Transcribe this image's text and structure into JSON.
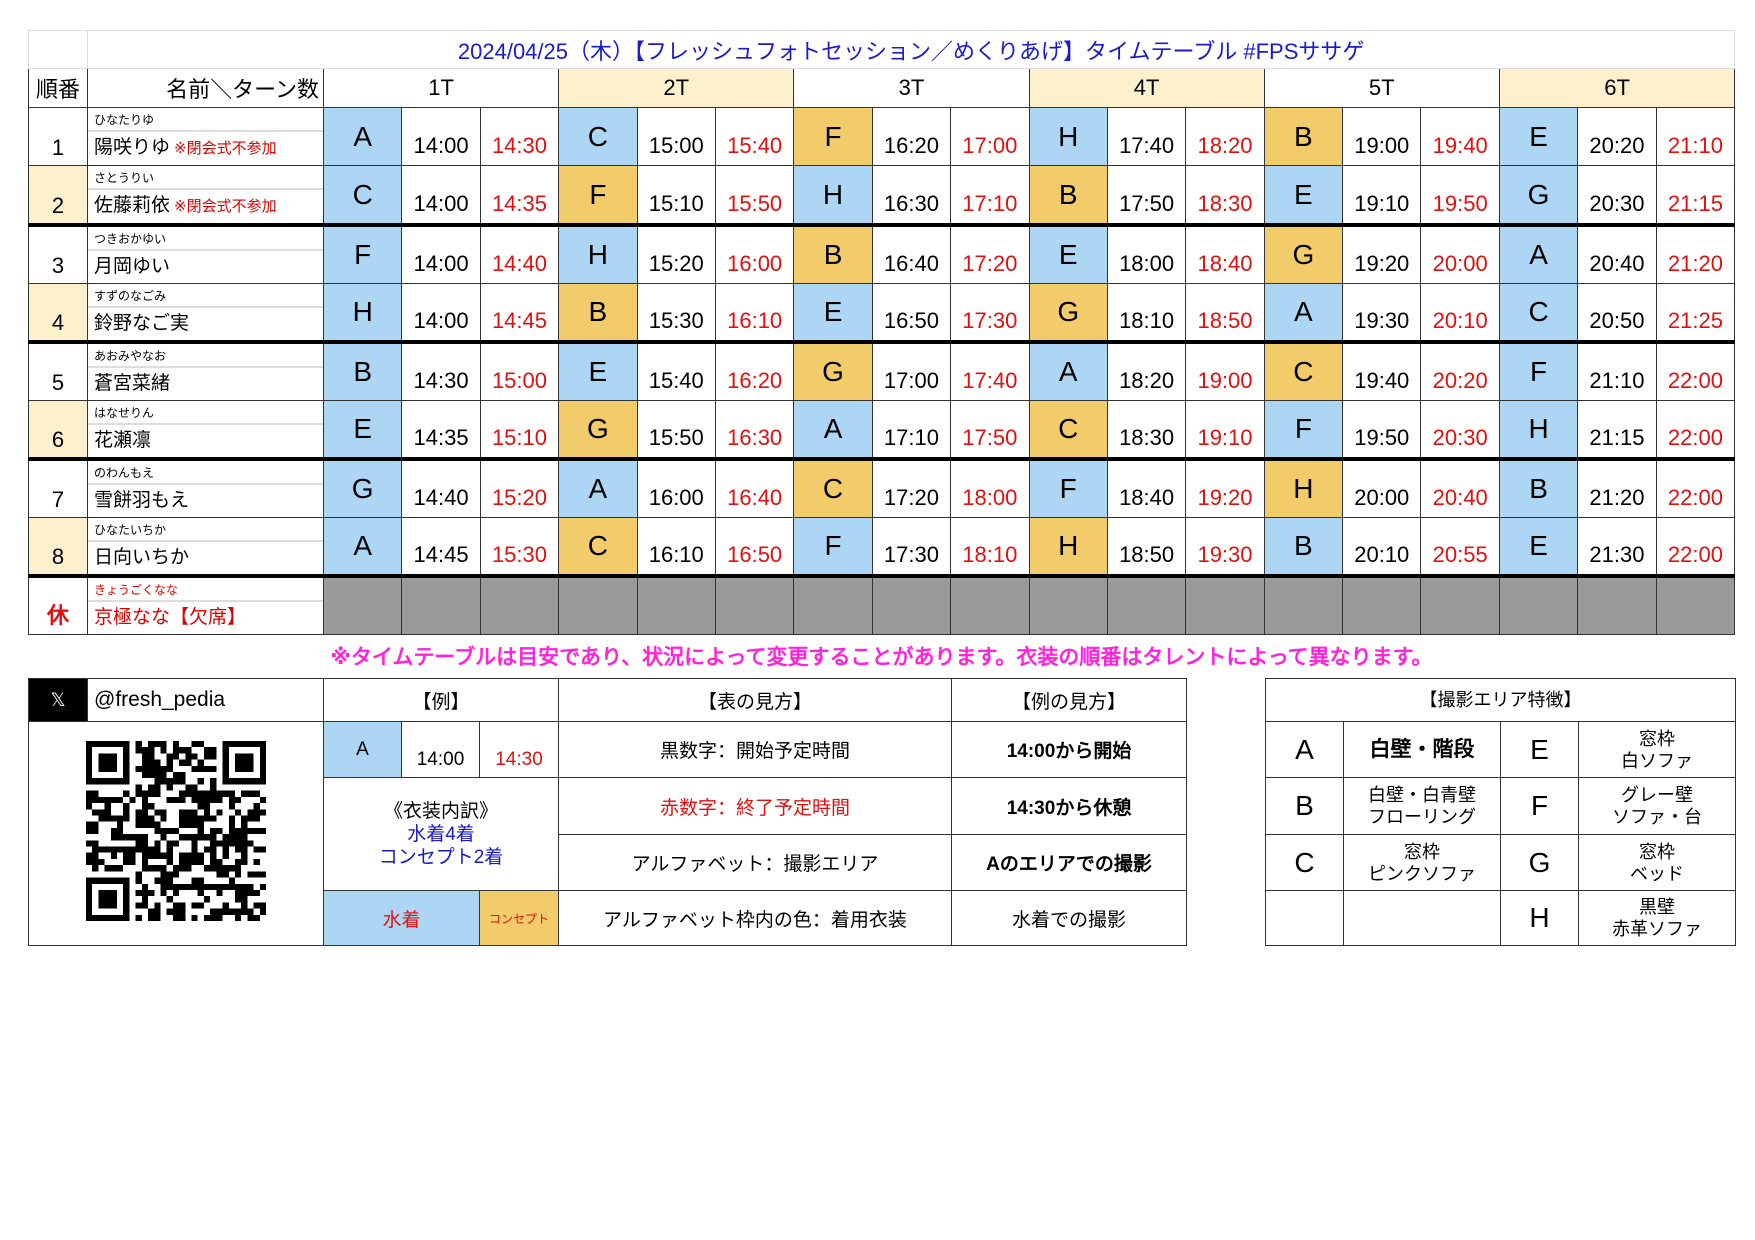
{
  "title": "2024/04/25（木）【フレッシュフォトセッション／めくりあげ】タイムテーブル #FPSササゲ",
  "header": {
    "order": "順番",
    "name_turns": "名前＼ターン数",
    "turns": [
      "1T",
      "2T",
      "3T",
      "4T",
      "5T",
      "6T"
    ]
  },
  "colors": {
    "swimsuit": "#acd6f4",
    "concept": "#f2cb6b",
    "end_time": "#e01010",
    "title": "#1a1acc",
    "notice": "#ff22dd",
    "rest": "#9a9a9a"
  },
  "rows": [
    {
      "no": "1",
      "kana": "ひなたりゆ",
      "name": "陽咲りゆ",
      "note": "※閉会式不参加",
      "slots": [
        [
          "A",
          "blue",
          "14:00",
          "14:30"
        ],
        [
          "C",
          "blue",
          "15:00",
          "15:40"
        ],
        [
          "F",
          "orange",
          "16:20",
          "17:00"
        ],
        [
          "H",
          "blue",
          "17:40",
          "18:20"
        ],
        [
          "B",
          "orange",
          "19:00",
          "19:40"
        ],
        [
          "E",
          "blue",
          "20:20",
          "21:10"
        ]
      ]
    },
    {
      "no": "2",
      "kana": "さとうりい",
      "name": "佐藤莉依",
      "note": "※閉会式不参加",
      "slots": [
        [
          "C",
          "blue",
          "14:00",
          "14:35"
        ],
        [
          "F",
          "orange",
          "15:10",
          "15:50"
        ],
        [
          "H",
          "blue",
          "16:30",
          "17:10"
        ],
        [
          "B",
          "orange",
          "17:50",
          "18:30"
        ],
        [
          "E",
          "blue",
          "19:10",
          "19:50"
        ],
        [
          "G",
          "blue",
          "20:30",
          "21:15"
        ]
      ]
    },
    {
      "no": "3",
      "kana": "つきおかゆい",
      "name": "月岡ゆい",
      "note": "",
      "slots": [
        [
          "F",
          "blue",
          "14:00",
          "14:40"
        ],
        [
          "H",
          "blue",
          "15:20",
          "16:00"
        ],
        [
          "B",
          "orange",
          "16:40",
          "17:20"
        ],
        [
          "E",
          "blue",
          "18:00",
          "18:40"
        ],
        [
          "G",
          "orange",
          "19:20",
          "20:00"
        ],
        [
          "A",
          "blue",
          "20:40",
          "21:20"
        ]
      ]
    },
    {
      "no": "4",
      "kana": "すずのなごみ",
      "name": "鈴野なご実",
      "note": "",
      "slots": [
        [
          "H",
          "blue",
          "14:00",
          "14:45"
        ],
        [
          "B",
          "orange",
          "15:30",
          "16:10"
        ],
        [
          "E",
          "blue",
          "16:50",
          "17:30"
        ],
        [
          "G",
          "orange",
          "18:10",
          "18:50"
        ],
        [
          "A",
          "blue",
          "19:30",
          "20:10"
        ],
        [
          "C",
          "blue",
          "20:50",
          "21:25"
        ]
      ]
    },
    {
      "no": "5",
      "kana": "あおみやなお",
      "name": "蒼宮菜緒",
      "note": "",
      "slots": [
        [
          "B",
          "blue",
          "14:30",
          "15:00"
        ],
        [
          "E",
          "blue",
          "15:40",
          "16:20"
        ],
        [
          "G",
          "orange",
          "17:00",
          "17:40"
        ],
        [
          "A",
          "blue",
          "18:20",
          "19:00"
        ],
        [
          "C",
          "orange",
          "19:40",
          "20:20"
        ],
        [
          "F",
          "blue",
          "21:10",
          "22:00"
        ]
      ]
    },
    {
      "no": "6",
      "kana": "はなせりん",
      "name": "花瀬凛",
      "note": "",
      "slots": [
        [
          "E",
          "blue",
          "14:35",
          "15:10"
        ],
        [
          "G",
          "orange",
          "15:50",
          "16:30"
        ],
        [
          "A",
          "blue",
          "17:10",
          "17:50"
        ],
        [
          "C",
          "orange",
          "18:30",
          "19:10"
        ],
        [
          "F",
          "blue",
          "19:50",
          "20:30"
        ],
        [
          "H",
          "blue",
          "21:15",
          "22:00"
        ]
      ]
    },
    {
      "no": "7",
      "kana": "のわんもえ",
      "name": "雪餅羽もえ",
      "note": "",
      "slots": [
        [
          "G",
          "blue",
          "14:40",
          "15:20"
        ],
        [
          "A",
          "blue",
          "16:00",
          "16:40"
        ],
        [
          "C",
          "orange",
          "17:20",
          "18:00"
        ],
        [
          "F",
          "blue",
          "18:40",
          "19:20"
        ],
        [
          "H",
          "orange",
          "20:00",
          "20:40"
        ],
        [
          "B",
          "blue",
          "21:20",
          "22:00"
        ]
      ]
    },
    {
      "no": "8",
      "kana": "ひなたいちか",
      "name": "日向いちか",
      "note": "",
      "slots": [
        [
          "A",
          "blue",
          "14:45",
          "15:30"
        ],
        [
          "C",
          "orange",
          "16:10",
          "16:50"
        ],
        [
          "F",
          "blue",
          "17:30",
          "18:10"
        ],
        [
          "H",
          "orange",
          "18:50",
          "19:30"
        ],
        [
          "B",
          "blue",
          "20:10",
          "20:55"
        ],
        [
          "E",
          "blue",
          "21:30",
          "22:00"
        ]
      ]
    }
  ],
  "rest": {
    "mark": "休",
    "kana": "きょうごくなな",
    "name": "京極なな【欠席】"
  },
  "notice": "※タイムテーブルは目安であり、状況によって変更することがあります。衣装の順番はタレントによって異なります。",
  "legend": {
    "x_icon": "𝕏",
    "handle": "@fresh_pedia",
    "example_header": "【例】",
    "how_table_header": "【表の見方】",
    "how_example_header": "【例の見方】",
    "example": {
      "area": "A",
      "start": "14:00",
      "end": "14:30"
    },
    "costume_title": "《衣装内訳》",
    "costume_swim": "水着4着",
    "costume_concept": "コンセプト2着",
    "swim_label": "水着",
    "concept_label": "コンセプト",
    "how_table": [
      "黒数字：開始予定時間",
      "赤数字：終了予定時間",
      "アルファベット：撮影エリア",
      "アルファベット枠内の色：着用衣装"
    ],
    "how_example": [
      "14:00から開始",
      "14:30から休憩",
      "Aのエリアでの撮影",
      "水着での撮影"
    ]
  },
  "areas": {
    "header": "【撮影エリア特徴】",
    "items": [
      {
        "letter": "A",
        "desc": "白壁・階段"
      },
      {
        "letter": "B",
        "desc": "白壁・白青壁\nフローリング"
      },
      {
        "letter": "C",
        "desc": "窓枠\nピンクソファ"
      },
      {
        "letter": "E",
        "desc": "窓枠\n白ソファ"
      },
      {
        "letter": "F",
        "desc": "グレー壁\nソファ・台"
      },
      {
        "letter": "G",
        "desc": "窓枠\nベッド"
      },
      {
        "letter": "H",
        "desc": "黒壁\n赤革ソファ"
      }
    ]
  }
}
